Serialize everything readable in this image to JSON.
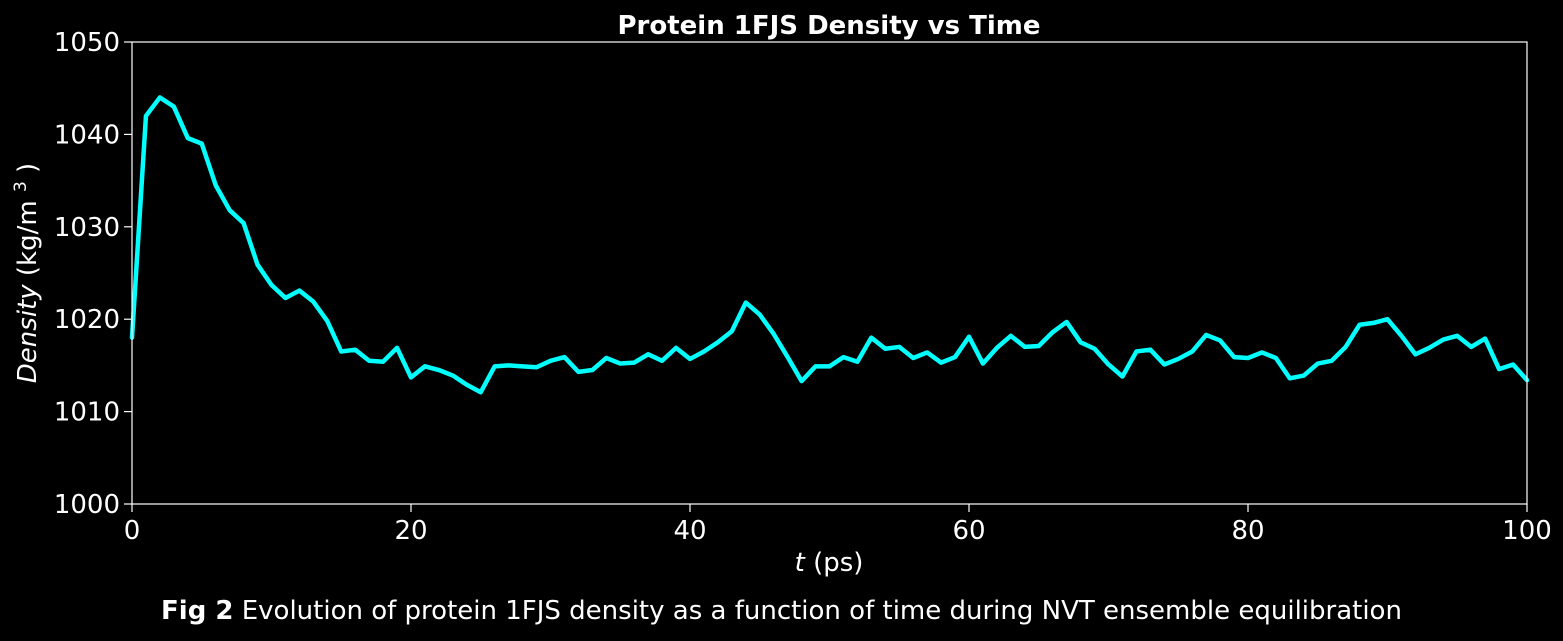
{
  "chart_data": {
    "type": "line",
    "title": "Protein 1FJS Density vs Time",
    "xlabel": {
      "var": "t",
      "unit": "(ps)"
    },
    "ylabel": {
      "var": "Density",
      "unit_prefix": "(kg/m",
      "unit_exp": "3",
      "unit_suffix": ")"
    },
    "xlim": [
      0,
      100
    ],
    "ylim": [
      1000,
      1050
    ],
    "xticks": [
      "0",
      "20",
      "40",
      "60",
      "80",
      "100"
    ],
    "yticks": [
      "1000",
      "1010",
      "1020",
      "1030",
      "1040",
      "1050"
    ],
    "grid": false,
    "background": "#000000",
    "axis_color": "#ffffff",
    "series": [
      {
        "color": "#00ffff",
        "x": [
          0,
          1,
          2,
          3,
          4,
          5,
          6,
          7,
          8,
          9,
          10,
          11,
          12,
          13,
          14,
          15,
          16,
          17,
          18,
          19,
          20,
          21,
          22,
          23,
          24,
          25,
          26,
          27,
          28,
          29,
          30,
          31,
          32,
          33,
          34,
          35,
          36,
          37,
          38,
          39,
          40,
          41,
          42,
          43,
          44,
          45,
          46,
          47,
          48,
          49,
          50,
          51,
          52,
          53,
          54,
          55,
          56,
          57,
          58,
          59,
          60,
          61,
          62,
          63,
          64,
          65,
          66,
          67,
          68,
          69,
          70,
          71,
          72,
          73,
          74,
          75,
          76,
          77,
          78,
          79,
          80,
          81,
          82,
          83,
          84,
          85,
          86,
          87,
          88,
          89,
          90,
          91,
          92,
          93,
          94,
          95,
          96,
          97,
          98,
          99,
          100
        ],
        "values": [
          1018,
          1042,
          1044,
          1043,
          1039.6,
          1039,
          1034.5,
          1031.8,
          1030.4,
          1025.9,
          1023.7,
          1022.3,
          1023.1,
          1021.9,
          1019.8,
          1016.5,
          1016.7,
          1015.5,
          1015.4,
          1016.9,
          1013.7,
          1014.9,
          1014.5,
          1013.9,
          1012.9,
          1012.1,
          1014.9,
          1015,
          1014.9,
          1014.8,
          1015.5,
          1015.9,
          1014.3,
          1014.5,
          1015.8,
          1015.2,
          1015.3,
          1016.2,
          1015.5,
          1016.9,
          1015.7,
          1016.5,
          1017.5,
          1018.7,
          1021.8,
          1020.5,
          1018.4,
          1015.9,
          1013.3,
          1014.9,
          1014.9,
          1015.9,
          1015.4,
          1018,
          1016.8,
          1017,
          1015.8,
          1016.4,
          1015.3,
          1015.9,
          1018.1,
          1015.2,
          1016.9,
          1018.2,
          1017,
          1017.1,
          1018.6,
          1019.7,
          1017.5,
          1016.8,
          1015.1,
          1013.8,
          1016.5,
          1016.7,
          1015.1,
          1015.7,
          1016.5,
          1018.3,
          1017.7,
          1015.9,
          1015.8,
          1016.4,
          1015.8,
          1013.6,
          1013.9,
          1015.2,
          1015.5,
          1017,
          1019.4,
          1019.6,
          1020,
          1018.2,
          1016.2,
          1016.9,
          1017.8,
          1018.2,
          1017,
          1017.9,
          1014.6,
          1015.1,
          1013.4
        ]
      }
    ]
  },
  "caption": {
    "label": "Fig 2",
    "text": " Evolution of protein 1FJS density as a function of time during NVT ensemble equilibration"
  }
}
